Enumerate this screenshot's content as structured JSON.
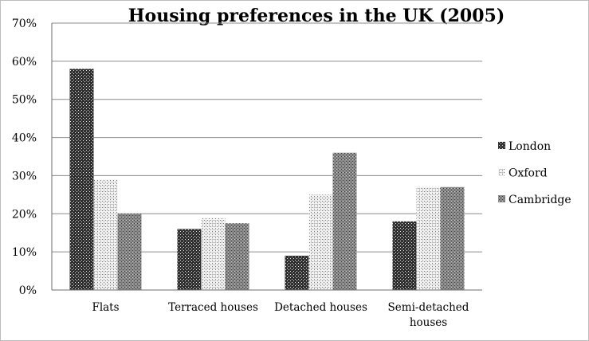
{
  "chart_data": {
    "type": "bar",
    "title": "Housing preferences  in the UK (2005)",
    "xlabel": "",
    "ylabel": "",
    "categories": [
      [
        "Flats"
      ],
      [
        "Terraced houses"
      ],
      [
        "Detached houses"
      ],
      [
        "Semi-detached",
        "houses"
      ]
    ],
    "series": [
      {
        "name": "London",
        "values": [
          58,
          16,
          9,
          18
        ],
        "pattern": "dense"
      },
      {
        "name": "Oxford",
        "values": [
          29,
          19,
          25,
          27
        ],
        "pattern": "light"
      },
      {
        "name": "Cambridge",
        "values": [
          20,
          17.5,
          36,
          27
        ],
        "pattern": "medium"
      }
    ],
    "ylim": [
      0,
      70
    ],
    "yticks": [
      0,
      10,
      20,
      30,
      40,
      50,
      60,
      70
    ],
    "ytick_labels": [
      "0%",
      "10%",
      "20%",
      "30%",
      "40%",
      "50%",
      "60%",
      "70%"
    ],
    "grid": true,
    "legend_position": "right"
  }
}
